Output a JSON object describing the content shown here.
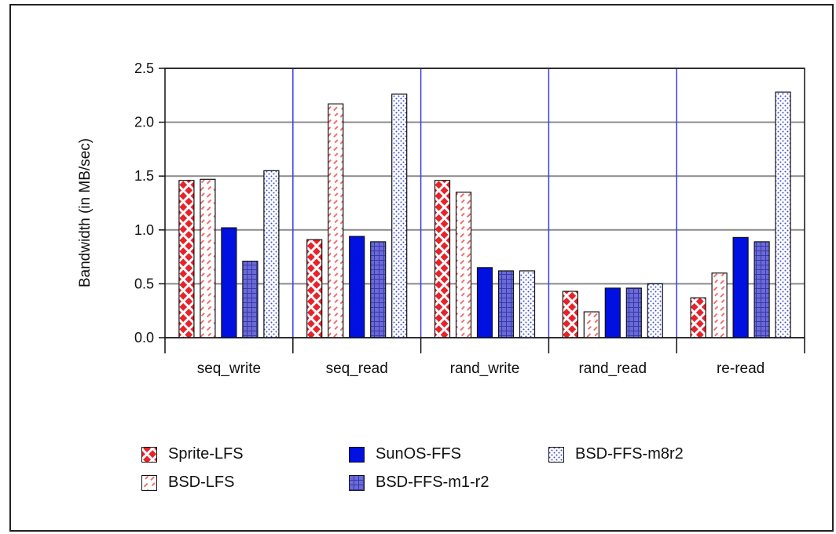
{
  "chart_data": {
    "type": "bar",
    "ylabel": "Bandwidth (in MB/sec)",
    "xlabel": "",
    "ylim": [
      0,
      2.5
    ],
    "yticks": [
      "0.0",
      "0.5",
      "1.0",
      "1.5",
      "2.0",
      "2.5"
    ],
    "categories": [
      "seq_write",
      "seq_read",
      "rand_write",
      "rand_read",
      "re-read"
    ],
    "series": [
      {
        "name": "Sprite-LFS",
        "values": [
          1.46,
          0.91,
          1.46,
          0.43,
          0.37
        ]
      },
      {
        "name": "BSD-LFS",
        "values": [
          1.47,
          2.17,
          1.35,
          0.24,
          0.6
        ]
      },
      {
        "name": "SunOS-FFS",
        "values": [
          1.02,
          0.94,
          0.65,
          0.46,
          0.93
        ]
      },
      {
        "name": "BSD-FFS-m1-r2",
        "values": [
          0.71,
          0.89,
          0.62,
          0.46,
          0.89
        ]
      },
      {
        "name": "BSD-FFS-m8r2",
        "values": [
          1.55,
          2.26,
          0.62,
          0.5,
          2.28
        ]
      }
    ],
    "colors": {
      "Sprite-LFS": "#e8222a",
      "BSD-LFS": "#f07070",
      "SunOS-FFS": "#0010e0",
      "BSD-FFS-m1-r2": "#6a6ad8",
      "BSD-FFS-m8r2": "#3a4ad8"
    },
    "grid": true,
    "legend_position": "bottom"
  },
  "legend": {
    "items": [
      "Sprite-LFS",
      "SunOS-FFS",
      "BSD-FFS-m8r2",
      "BSD-LFS",
      "BSD-FFS-m1-r2"
    ]
  }
}
